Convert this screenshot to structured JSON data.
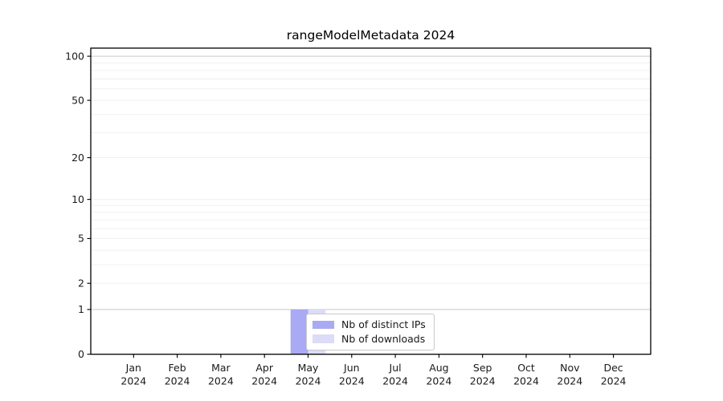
{
  "chart_data": {
    "type": "bar",
    "title": "rangeModelMetadata 2024",
    "categories": [
      "Jan 2024",
      "Feb 2024",
      "Mar 2024",
      "Apr 2024",
      "May 2024",
      "Jun 2024",
      "Jul 2024",
      "Aug 2024",
      "Sep 2024",
      "Oct 2024",
      "Nov 2024",
      "Dec 2024"
    ],
    "series": [
      {
        "name": "Nb of distinct IPs",
        "color": "#a9a9f4",
        "values": [
          0,
          0,
          0,
          0,
          1,
          0,
          0,
          0,
          0,
          0,
          0,
          0
        ]
      },
      {
        "name": "Nb of downloads",
        "color": "#dcdcf8",
        "values": [
          0,
          0,
          0,
          0,
          1,
          0,
          0,
          0,
          0,
          0,
          0,
          0
        ]
      }
    ],
    "xlabel": "",
    "ylabel": "",
    "yscale": "log1p",
    "ylim": [
      0,
      113
    ],
    "y_ticks": [
      0,
      1,
      2,
      5,
      10,
      20,
      50,
      100
    ],
    "y_minor_gridlines": [
      2,
      3,
      4,
      5,
      6,
      7,
      8,
      9,
      10,
      20,
      30,
      40,
      50,
      60,
      70,
      80,
      90
    ],
    "y_major_gridlines": [
      1,
      100
    ],
    "grid": true,
    "legend_position": "inside lower-center"
  },
  "colors": {
    "bar_distinct_ips": "#a9a9f4",
    "bar_downloads": "#dcdcf8",
    "grid_minor": "#f0f0f0",
    "grid_major": "#c9c9c9",
    "axis": "#000000",
    "text": "#1a1a1a",
    "legend_border": "#c9c9c9",
    "legend_background": "#ffffff",
    "background": "#ffffff"
  }
}
